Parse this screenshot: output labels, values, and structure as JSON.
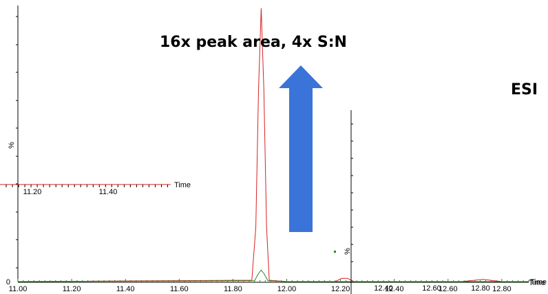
{
  "annotation": {
    "headline": "16x peak area, 4x S:N",
    "side_label": "ESI",
    "arrow_direction": "up",
    "arrow_color": "#3a74d8"
  },
  "chart_data": [
    {
      "type": "line",
      "title": "",
      "xlabel": "Time",
      "ylabel": "%",
      "xlim": [
        11.0,
        12.9
      ],
      "ylim": [
        0,
        100
      ],
      "x_ticks": [
        "11.00",
        "11.20",
        "11.40",
        "11.60",
        "11.80",
        "12.00",
        "12.20",
        "12.40",
        "12.60",
        "12.80"
      ],
      "y_ticks": [
        "0"
      ],
      "series": [
        {
          "color": "#d62020",
          "x": [
            11.0,
            11.87,
            11.885,
            11.895,
            11.905,
            11.915,
            11.925,
            11.935,
            12.0,
            12.18,
            12.205,
            12.225,
            12.25,
            12.65,
            12.73,
            12.8,
            12.9
          ],
          "y": [
            0,
            0.5,
            20,
            70,
            100,
            70,
            20,
            0.5,
            0,
            0,
            1.2,
            1.2,
            0,
            0,
            0.8,
            0,
            0
          ]
        },
        {
          "color": "#1f8a1f",
          "x": [
            11.0,
            11.88,
            11.895,
            11.905,
            11.915,
            11.93,
            12.0,
            12.9
          ],
          "y": [
            0,
            0.3,
            3,
            4.2,
            3,
            0.3,
            0,
            0
          ]
        }
      ]
    },
    {
      "type": "line",
      "title": "",
      "xlabel": "Time",
      "ylabel": "",
      "xlim": [
        11.0,
        11.55
      ],
      "ylim": [
        0,
        100
      ],
      "x_ticks": [
        "11.20",
        "11.40"
      ],
      "series": [
        {
          "color": "#d62020",
          "x": [
            11.0,
            11.55
          ],
          "y": [
            0,
            0
          ]
        }
      ]
    },
    {
      "type": "line",
      "title": "",
      "xlabel": "Time",
      "ylabel": "%",
      "xlim": [
        12.2,
        12.95
      ],
      "ylim": [
        0,
        100
      ],
      "x_ticks": [
        "12.40",
        "12.60",
        "12.80"
      ],
      "series": [
        {
          "color": "#1f8a1f",
          "x": [
            12.2,
            12.95
          ],
          "y": [
            0,
            0
          ]
        }
      ]
    }
  ]
}
